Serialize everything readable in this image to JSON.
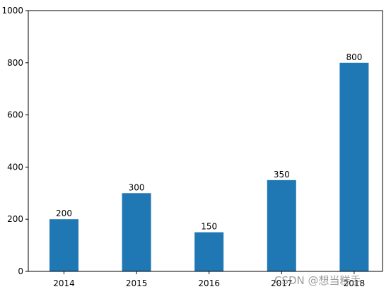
{
  "chart_data": {
    "type": "bar",
    "categories": [
      "2014",
      "2015",
      "2016",
      "2017",
      "2018"
    ],
    "values": [
      200,
      300,
      150,
      350,
      800
    ],
    "data_labels": [
      "200",
      "300",
      "150",
      "350",
      "800"
    ],
    "ylim": [
      0,
      1000
    ],
    "yticks": [
      0,
      200,
      400,
      600,
      800,
      1000
    ],
    "ytick_labels": [
      "0",
      "200",
      "400",
      "600",
      "800",
      "1000"
    ],
    "bar_color": "#1f77b4",
    "grid": false,
    "legend": "none"
  },
  "watermark": "CSDN @想当糕手"
}
